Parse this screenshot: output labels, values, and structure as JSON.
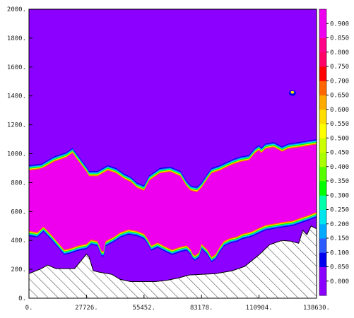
{
  "chart_data": {
    "type": "heatmap",
    "title": "",
    "xlabel": "",
    "ylabel": "",
    "xlim": [
      0,
      138630
    ],
    "ylim": [
      0,
      2000
    ],
    "x_ticks": [
      "0.",
      "27726.",
      "55452.",
      "83178.",
      "110904.",
      "138630."
    ],
    "y_ticks": [
      "0.",
      "200.",
      "400.",
      "600.",
      "800.",
      "1000.",
      "1200.",
      "1400.",
      "1600.",
      "1800.",
      "2000."
    ],
    "grid": false,
    "legend": "right",
    "colorbar": {
      "levels": [
        "0.000",
        "0.050",
        "0.100",
        "0.150",
        "0.200",
        "0.250",
        "0.300",
        "0.350",
        "0.400",
        "0.450",
        "0.500",
        "0.550",
        "0.600",
        "0.650",
        "0.700",
        "0.750",
        "0.800",
        "0.850",
        "0.900"
      ],
      "colors": [
        "#8b00ff",
        "#8b00ff",
        "#0000ee",
        "#2c5bff",
        "#00aaff",
        "#00e5ee",
        "#00ffaa",
        "#00ff00",
        "#55ff00",
        "#aaff00",
        "#ccff00",
        "#ffff00",
        "#ffdd00",
        "#ffaa00",
        "#ff6600",
        "#ff0000",
        "#ff0066",
        "#ff0088",
        "#ee00ee",
        "#ee00ee"
      ]
    },
    "background_value": 0.0,
    "terrain_top": [
      [
        0,
        170
      ],
      [
        6000,
        205
      ],
      [
        9000,
        230
      ],
      [
        13000,
        205
      ],
      [
        22000,
        205
      ],
      [
        27726,
        305
      ],
      [
        29000,
        285
      ],
      [
        31000,
        190
      ],
      [
        34000,
        180
      ],
      [
        40000,
        165
      ],
      [
        44000,
        130
      ],
      [
        49000,
        115
      ],
      [
        55452,
        115
      ],
      [
        61000,
        115
      ],
      [
        67000,
        125
      ],
      [
        72000,
        140
      ],
      [
        77000,
        160
      ],
      [
        83178,
        165
      ],
      [
        90000,
        170
      ],
      [
        98000,
        190
      ],
      [
        104000,
        220
      ],
      [
        110904,
        300
      ],
      [
        116000,
        370
      ],
      [
        122000,
        400
      ],
      [
        126000,
        395
      ],
      [
        130000,
        380
      ],
      [
        132000,
        470
      ],
      [
        134000,
        440
      ],
      [
        136000,
        500
      ],
      [
        138630,
        480
      ]
    ],
    "cloud_region": {
      "top": [
        [
          0,
          920
        ],
        [
          6000,
          930
        ],
        [
          12000,
          980
        ],
        [
          18000,
          1010
        ],
        [
          21000,
          1040
        ],
        [
          23000,
          1000
        ],
        [
          27726,
          910
        ],
        [
          29000,
          880
        ],
        [
          33000,
          880
        ],
        [
          38000,
          920
        ],
        [
          42000,
          900
        ],
        [
          46000,
          860
        ],
        [
          49000,
          840
        ],
        [
          52000,
          800
        ],
        [
          55452,
          780
        ],
        [
          58000,
          850
        ],
        [
          63000,
          900
        ],
        [
          68000,
          910
        ],
        [
          73000,
          880
        ],
        [
          76000,
          810
        ],
        [
          78000,
          780
        ],
        [
          81000,
          770
        ],
        [
          83178,
          800
        ],
        [
          86000,
          860
        ],
        [
          88000,
          900
        ],
        [
          92000,
          920
        ],
        [
          98000,
          960
        ],
        [
          102000,
          980
        ],
        [
          106000,
          990
        ],
        [
          109000,
          1040
        ],
        [
          110904,
          1060
        ],
        [
          112000,
          1040
        ],
        [
          114000,
          1070
        ],
        [
          118000,
          1080
        ],
        [
          122000,
          1050
        ],
        [
          125000,
          1070
        ],
        [
          130000,
          1080
        ],
        [
          134000,
          1090
        ],
        [
          138630,
          1100
        ]
      ],
      "bottom": [
        [
          0,
          430
        ],
        [
          4000,
          420
        ],
        [
          7000,
          460
        ],
        [
          11000,
          400
        ],
        [
          14000,
          350
        ],
        [
          17000,
          300
        ],
        [
          20000,
          310
        ],
        [
          24000,
          330
        ],
        [
          27726,
          340
        ],
        [
          30000,
          370
        ],
        [
          33000,
          360
        ],
        [
          35000,
          290
        ],
        [
          36000,
          290
        ],
        [
          37000,
          360
        ],
        [
          41000,
          390
        ],
        [
          44000,
          420
        ],
        [
          48000,
          440
        ],
        [
          52000,
          430
        ],
        [
          55452,
          410
        ],
        [
          57000,
          380
        ],
        [
          59000,
          330
        ],
        [
          62000,
          350
        ],
        [
          66000,
          320
        ],
        [
          69000,
          300
        ],
        [
          73000,
          320
        ],
        [
          76000,
          330
        ],
        [
          78000,
          300
        ],
        [
          79000,
          270
        ],
        [
          80000,
          260
        ],
        [
          82000,
          280
        ],
        [
          83178,
          340
        ],
        [
          86000,
          300
        ],
        [
          88000,
          250
        ],
        [
          90000,
          270
        ],
        [
          92000,
          320
        ],
        [
          94000,
          360
        ],
        [
          97000,
          380
        ],
        [
          100000,
          390
        ],
        [
          103000,
          410
        ],
        [
          106000,
          420
        ],
        [
          108000,
          430
        ],
        [
          110904,
          450
        ],
        [
          114000,
          470
        ],
        [
          118000,
          480
        ],
        [
          122000,
          490
        ],
        [
          127000,
          500
        ],
        [
          131000,
          520
        ],
        [
          135000,
          540
        ],
        [
          138630,
          560
        ]
      ],
      "core_top": [
        [
          0,
          850
        ],
        [
          6000,
          900
        ],
        [
          12000,
          920
        ],
        [
          18000,
          950
        ],
        [
          21000,
          960
        ],
        [
          23000,
          930
        ],
        [
          27726,
          780
        ],
        [
          29000,
          760
        ],
        [
          33000,
          820
        ],
        [
          38000,
          820
        ],
        [
          42000,
          760
        ],
        [
          46000,
          740
        ],
        [
          49000,
          720
        ],
        [
          52000,
          700
        ],
        [
          55452,
          700
        ],
        [
          58000,
          780
        ],
        [
          63000,
          800
        ],
        [
          68000,
          800
        ],
        [
          73000,
          770
        ],
        [
          76000,
          700
        ],
        [
          78000,
          650
        ],
        [
          81000,
          660
        ],
        [
          83178,
          740
        ],
        [
          86000,
          800
        ],
        [
          88000,
          840
        ],
        [
          92000,
          860
        ],
        [
          98000,
          900
        ],
        [
          102000,
          920
        ],
        [
          106000,
          940
        ],
        [
          109000,
          980
        ],
        [
          110904,
          990
        ],
        [
          112000,
          960
        ],
        [
          114000,
          990
        ],
        [
          118000,
          1010
        ],
        [
          122000,
          980
        ],
        [
          125000,
          1000
        ],
        [
          130000,
          1010
        ],
        [
          134000,
          1020
        ],
        [
          138630,
          1030
        ]
      ],
      "core_bottom": [
        [
          0,
          480
        ],
        [
          4000,
          500
        ],
        [
          7000,
          520
        ],
        [
          11000,
          470
        ],
        [
          14000,
          440
        ],
        [
          17000,
          420
        ],
        [
          20000,
          440
        ],
        [
          24000,
          470
        ],
        [
          27726,
          440
        ],
        [
          30000,
          450
        ],
        [
          33000,
          440
        ],
        [
          35000,
          400
        ],
        [
          36000,
          400
        ],
        [
          37000,
          430
        ],
        [
          41000,
          450
        ],
        [
          44000,
          480
        ],
        [
          48000,
          490
        ],
        [
          52000,
          480
        ],
        [
          55452,
          460
        ],
        [
          57000,
          450
        ],
        [
          59000,
          420
        ],
        [
          62000,
          430
        ],
        [
          66000,
          400
        ],
        [
          69000,
          380
        ],
        [
          73000,
          390
        ],
        [
          76000,
          420
        ],
        [
          78000,
          370
        ],
        [
          79000,
          330
        ],
        [
          80000,
          320
        ],
        [
          82000,
          340
        ],
        [
          83178,
          400
        ],
        [
          86000,
          360
        ],
        [
          88000,
          320
        ],
        [
          90000,
          340
        ],
        [
          92000,
          390
        ],
        [
          94000,
          430
        ],
        [
          97000,
          460
        ],
        [
          100000,
          470
        ],
        [
          103000,
          490
        ],
        [
          106000,
          510
        ],
        [
          108000,
          520
        ],
        [
          110904,
          560
        ],
        [
          114000,
          600
        ],
        [
          118000,
          620
        ],
        [
          122000,
          640
        ],
        [
          127000,
          660
        ],
        [
          131000,
          680
        ],
        [
          135000,
          700
        ],
        [
          138630,
          720
        ]
      ]
    },
    "small_feature": {
      "x": 127000,
      "y": 1420,
      "value": 0.6
    }
  }
}
